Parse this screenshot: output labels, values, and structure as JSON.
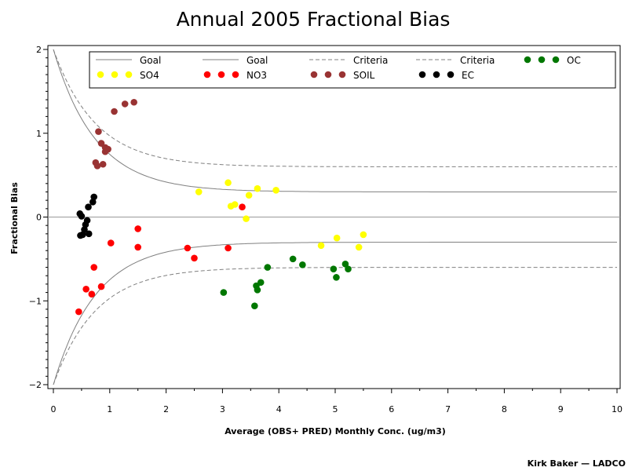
{
  "chart_data": {
    "type": "scatter",
    "title": "Annual 2005 Fractional Bias",
    "xlabel": "Average (OBS+ PRED) Monthly Conc. (ug/m3)",
    "ylabel": "Fractional Bias",
    "xlim": [
      0,
      10
    ],
    "ylim": [
      -2,
      2
    ],
    "x_ticks": [
      0,
      1,
      2,
      3,
      4,
      5,
      6,
      7,
      8,
      9,
      10
    ],
    "y_ticks": [
      -2,
      -1,
      0,
      1,
      2
    ],
    "grid": false,
    "legend_position": "top",
    "reference_lines": [
      {
        "name": "Goal",
        "style": "solid",
        "color": "#808080"
      },
      {
        "name": "Goal",
        "style": "solid",
        "color": "#808080"
      },
      {
        "name": "Criteria",
        "style": "dashed",
        "color": "#808080"
      },
      {
        "name": "Criteria",
        "style": "dashed",
        "color": "#808080"
      }
    ],
    "series": [
      {
        "name": "SO4",
        "color": "#ffff00",
        "points": [
          [
            2.58,
            0.3
          ],
          [
            3.1,
            0.41
          ],
          [
            3.15,
            0.13
          ],
          [
            3.22,
            0.15
          ],
          [
            3.47,
            0.26
          ],
          [
            3.62,
            0.34
          ],
          [
            3.95,
            0.32
          ],
          [
            3.42,
            -0.02
          ],
          [
            4.75,
            -0.34
          ],
          [
            5.03,
            -0.25
          ],
          [
            5.42,
            -0.36
          ],
          [
            5.5,
            -0.21
          ]
        ]
      },
      {
        "name": "NO3",
        "color": "#ff0000",
        "points": [
          [
            0.45,
            -1.13
          ],
          [
            0.58,
            -0.86
          ],
          [
            0.68,
            -0.92
          ],
          [
            0.72,
            -0.6
          ],
          [
            0.85,
            -0.83
          ],
          [
            1.02,
            -0.31
          ],
          [
            1.5,
            -0.14
          ],
          [
            1.5,
            -0.36
          ],
          [
            2.38,
            -0.37
          ],
          [
            2.5,
            -0.49
          ],
          [
            3.1,
            -0.37
          ],
          [
            3.35,
            0.12
          ]
        ]
      },
      {
        "name": "SOIL",
        "color": "#993333",
        "points": [
          [
            0.75,
            0.65
          ],
          [
            0.78,
            0.61
          ],
          [
            0.8,
            1.02
          ],
          [
            0.85,
            0.88
          ],
          [
            0.88,
            0.63
          ],
          [
            0.92,
            0.78
          ],
          [
            0.92,
            0.83
          ],
          [
            0.97,
            0.81
          ],
          [
            1.08,
            1.26
          ],
          [
            1.27,
            1.35
          ],
          [
            1.43,
            1.37
          ]
        ]
      },
      {
        "name": "EC",
        "color": "#000000",
        "points": [
          [
            0.47,
            0.04
          ],
          [
            0.5,
            0.01
          ],
          [
            0.48,
            -0.22
          ],
          [
            0.52,
            -0.21
          ],
          [
            0.55,
            -0.15
          ],
          [
            0.57,
            -0.09
          ],
          [
            0.6,
            -0.04
          ],
          [
            0.62,
            0.12
          ],
          [
            0.63,
            -0.2
          ],
          [
            0.7,
            0.18
          ],
          [
            0.72,
            0.24
          ]
        ]
      },
      {
        "name": "OC",
        "color": "#007700",
        "points": [
          [
            3.02,
            -0.9
          ],
          [
            3.57,
            -1.06
          ],
          [
            3.6,
            -0.82
          ],
          [
            3.62,
            -0.87
          ],
          [
            3.68,
            -0.78
          ],
          [
            3.8,
            -0.6
          ],
          [
            4.25,
            -0.5
          ],
          [
            4.42,
            -0.57
          ],
          [
            4.97,
            -0.62
          ],
          [
            5.02,
            -0.72
          ],
          [
            5.18,
            -0.56
          ],
          [
            5.23,
            -0.62
          ]
        ]
      }
    ]
  },
  "footer": {
    "text": "Kirk Baker — LADCO"
  }
}
